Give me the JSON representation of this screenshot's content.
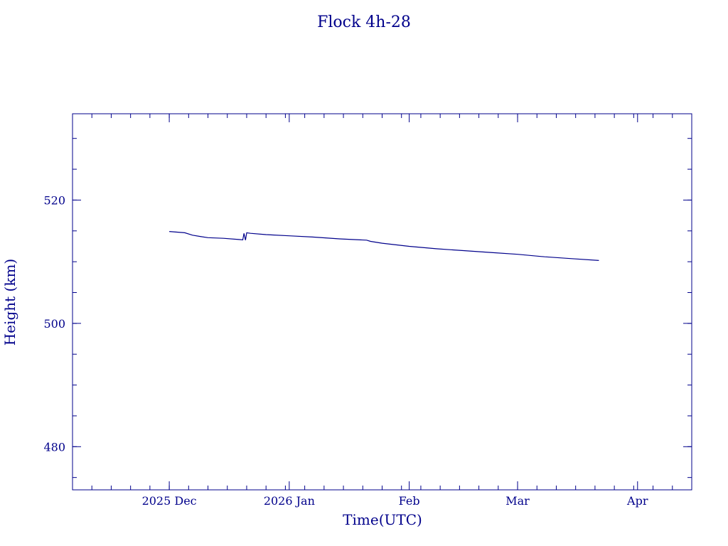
{
  "chart_data": {
    "type": "line",
    "title": "Flock 4h-28",
    "xlabel": "Time(UTC)",
    "ylabel": "Height (km)",
    "xlim": [
      "2025-11-06",
      "2026-04-15"
    ],
    "ylim": [
      473,
      534
    ],
    "x_ticks": [
      {
        "date": "2025-12-01",
        "label": "2025 Dec"
      },
      {
        "date": "2026-01-01",
        "label": "2026 Jan"
      },
      {
        "date": "2026-02-01",
        "label": "Feb"
      },
      {
        "date": "2026-03-01",
        "label": "Mar"
      },
      {
        "date": "2026-04-01",
        "label": "Apr"
      }
    ],
    "y_ticks": [
      480,
      500,
      520
    ],
    "y_minor_step": 5,
    "x_minor_step_days": 5,
    "grid": false,
    "series": [
      {
        "color": "#00008b",
        "points": [
          {
            "x": "2025-12-01",
            "y": 514.9
          },
          {
            "x": "2025-12-03",
            "y": 514.8
          },
          {
            "x": "2025-12-05",
            "y": 514.7
          },
          {
            "x": "2025-12-07",
            "y": 514.3
          },
          {
            "x": "2025-12-09",
            "y": 514.1
          },
          {
            "x": "2025-12-11",
            "y": 513.9
          },
          {
            "x": "2025-12-15",
            "y": 513.8
          },
          {
            "x": "2025-12-19",
            "y": 513.6
          },
          {
            "x": "2025-12-20",
            "y": 513.55
          },
          {
            "x": "2025-12-20.3",
            "y": 514.6
          },
          {
            "x": "2025-12-20.7",
            "y": 513.5
          },
          {
            "x": "2025-12-21",
            "y": 514.7
          },
          {
            "x": "2025-12-22",
            "y": 514.6
          },
          {
            "x": "2025-12-26",
            "y": 514.4
          },
          {
            "x": "2026-01-01",
            "y": 514.2
          },
          {
            "x": "2026-01-07",
            "y": 514.0
          },
          {
            "x": "2026-01-14",
            "y": 513.7
          },
          {
            "x": "2026-01-21",
            "y": 513.5
          },
          {
            "x": "2026-01-22",
            "y": 513.3
          },
          {
            "x": "2026-01-25",
            "y": 513.0
          },
          {
            "x": "2026-02-01",
            "y": 512.5
          },
          {
            "x": "2026-02-08",
            "y": 512.1
          },
          {
            "x": "2026-02-15",
            "y": 511.8
          },
          {
            "x": "2026-02-22",
            "y": 511.5
          },
          {
            "x": "2026-03-01",
            "y": 511.2
          },
          {
            "x": "2026-03-08",
            "y": 510.8
          },
          {
            "x": "2026-03-15",
            "y": 510.5
          },
          {
            "x": "2026-03-22",
            "y": 510.2
          }
        ]
      }
    ]
  }
}
